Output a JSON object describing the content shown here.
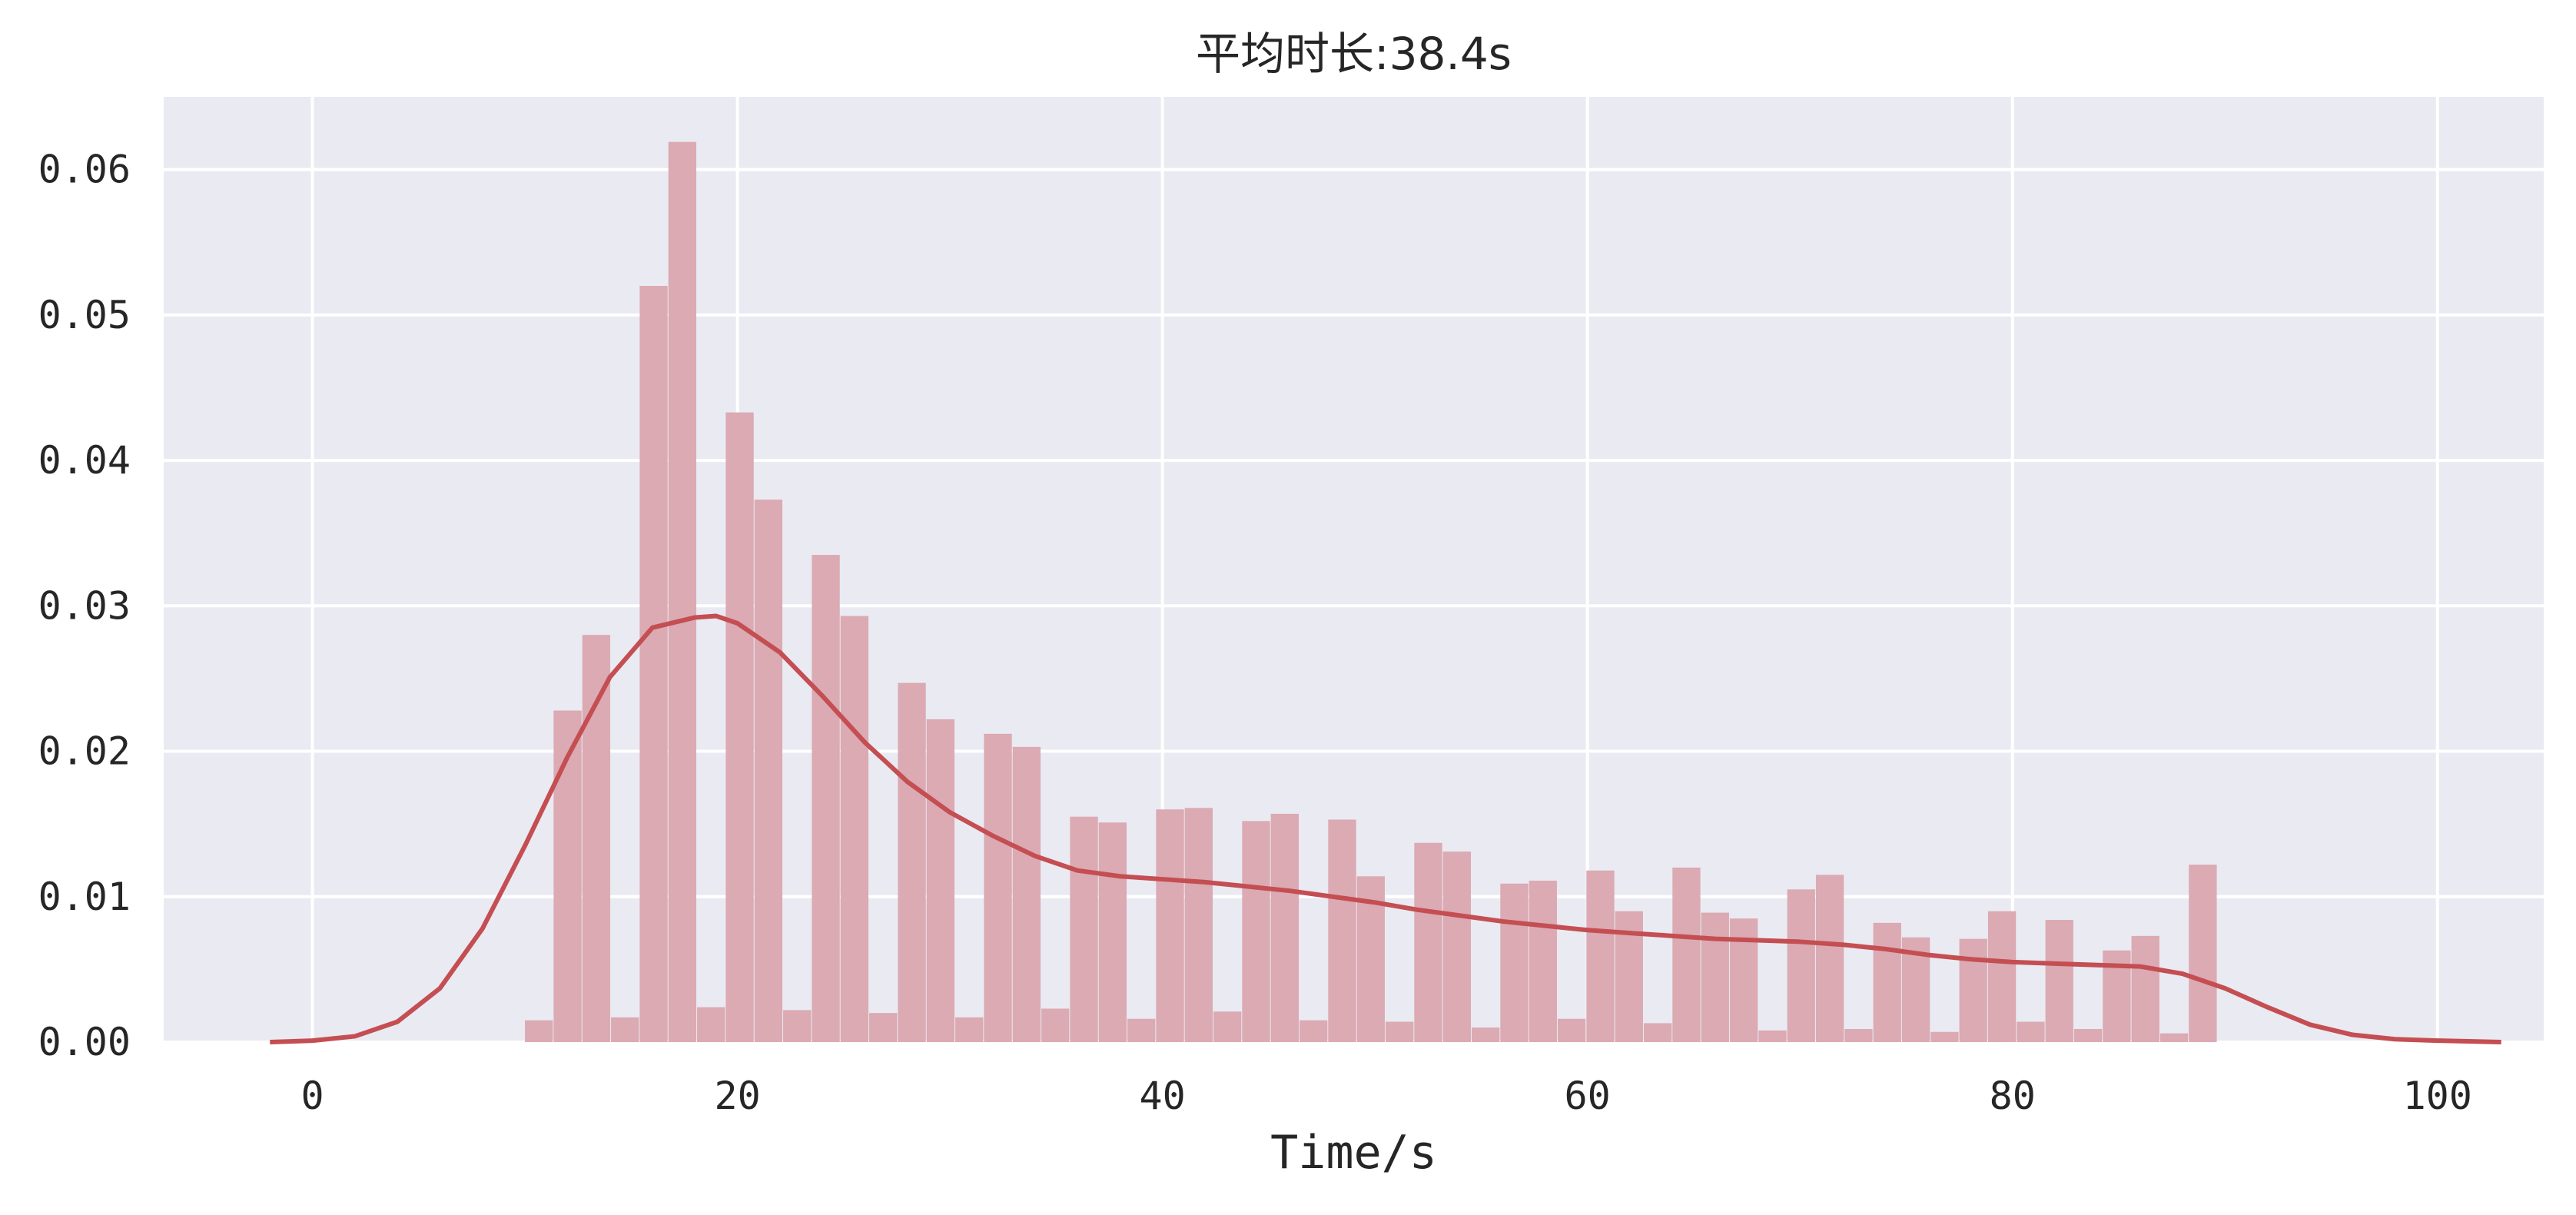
{
  "chart_data": {
    "type": "bar",
    "title": "平均时长:38.4s",
    "xlabel": "Time/s",
    "ylabel": "",
    "xlim": [
      -7,
      105
    ],
    "ylim": [
      0,
      0.065
    ],
    "xticks": [
      0,
      20,
      40,
      60,
      80,
      100
    ],
    "xtick_labels": [
      "0",
      "20",
      "40",
      "60",
      "80",
      "100"
    ],
    "yticks": [
      0,
      0.01,
      0.02,
      0.03,
      0.04,
      0.05,
      0.06
    ],
    "ytick_labels": [
      "0.00",
      "0.01",
      "0.02",
      "0.03",
      "0.04",
      "0.05",
      "0.06"
    ],
    "grid": true,
    "colors": {
      "background": "#eaeaf2",
      "grid": "#ffffff",
      "histogram": "#dbaab3",
      "kde": "#c44e52"
    },
    "histogram": {
      "bin_start": 10,
      "bin_width": 1.35,
      "heights": [
        0.0015,
        0.0228,
        0.028,
        0.0017,
        0.052,
        0.0619,
        0.0024,
        0.0433,
        0.0373,
        0.0022,
        0.0335,
        0.0293,
        0.002,
        0.0247,
        0.0222,
        0.0017,
        0.0212,
        0.0203,
        0.0023,
        0.0155,
        0.0151,
        0.0016,
        0.016,
        0.0161,
        0.0021,
        0.0152,
        0.0157,
        0.0015,
        0.0153,
        0.0114,
        0.0014,
        0.0137,
        0.0131,
        0.001,
        0.0109,
        0.0111,
        0.0016,
        0.0118,
        0.009,
        0.0013,
        0.012,
        0.0089,
        0.0085,
        0.0008,
        0.0105,
        0.0115,
        0.0009,
        0.0082,
        0.0072,
        0.0007,
        0.0071,
        0.009,
        0.0014,
        0.0084,
        0.0009,
        0.0063,
        0.0073,
        0.0006,
        0.0122
      ]
    },
    "series": [
      {
        "type": "line",
        "x": [
          -2,
          0,
          2,
          4,
          6,
          8,
          10,
          12,
          14,
          16,
          18,
          19,
          20,
          22,
          24,
          26,
          28,
          30,
          32,
          34,
          36,
          38,
          40,
          42,
          44,
          46,
          48,
          50,
          52,
          54,
          56,
          58,
          60,
          62,
          64,
          66,
          68,
          70,
          72,
          74,
          76,
          78,
          80,
          82,
          84,
          86,
          88,
          90,
          92,
          94,
          96,
          98,
          100,
          103
        ],
        "values": [
          0.0,
          0.0001,
          0.0004,
          0.0014,
          0.0037,
          0.0078,
          0.0135,
          0.0196,
          0.0251,
          0.0285,
          0.0292,
          0.0293,
          0.0288,
          0.0268,
          0.0238,
          0.0206,
          0.0179,
          0.0158,
          0.0142,
          0.0128,
          0.0118,
          0.0114,
          0.0112,
          0.011,
          0.0107,
          0.0104,
          0.01,
          0.0096,
          0.0091,
          0.0087,
          0.0083,
          0.008,
          0.0077,
          0.0075,
          0.0073,
          0.0071,
          0.007,
          0.0069,
          0.0067,
          0.0064,
          0.006,
          0.0057,
          0.0055,
          0.0054,
          0.0053,
          0.0052,
          0.0047,
          0.0037,
          0.0024,
          0.0012,
          0.0005,
          0.0002,
          0.0001,
          0.0
        ]
      }
    ]
  }
}
